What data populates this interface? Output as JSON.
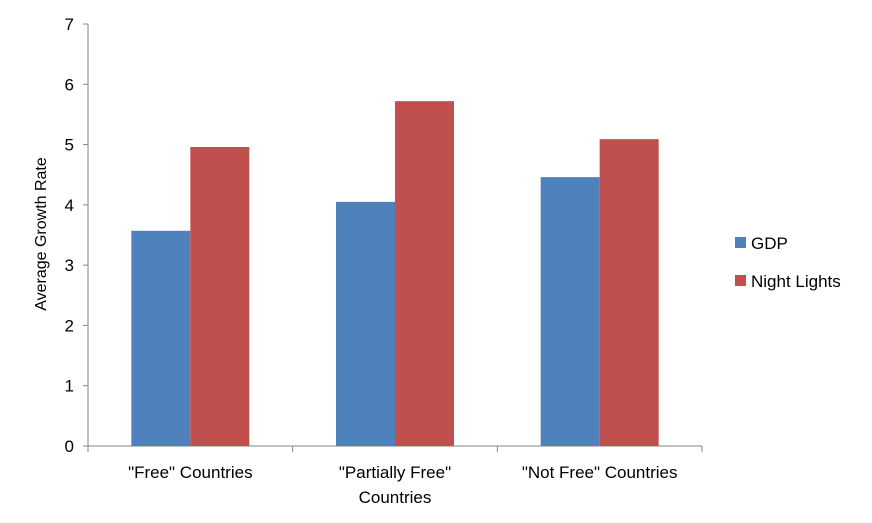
{
  "chart_data": {
    "type": "bar",
    "categories": [
      [
        "\"Free\" Countries"
      ],
      [
        "\"Partially Free\"",
        "Countries"
      ],
      [
        "\"Not Free\" Countries"
      ]
    ],
    "series": [
      {
        "name": "GDP",
        "values": [
          3.57,
          4.05,
          4.46
        ],
        "color": "#4F81BD"
      },
      {
        "name": "Night Lights",
        "values": [
          4.96,
          5.72,
          5.09
        ],
        "color": "#C0504D"
      }
    ],
    "title": "",
    "xlabel": "",
    "ylabel": "Average Growth Rate",
    "ylim": [
      0,
      7
    ],
    "yticks": [
      0,
      1,
      2,
      3,
      4,
      5,
      6,
      7
    ],
    "grid": false,
    "legend": "right"
  }
}
